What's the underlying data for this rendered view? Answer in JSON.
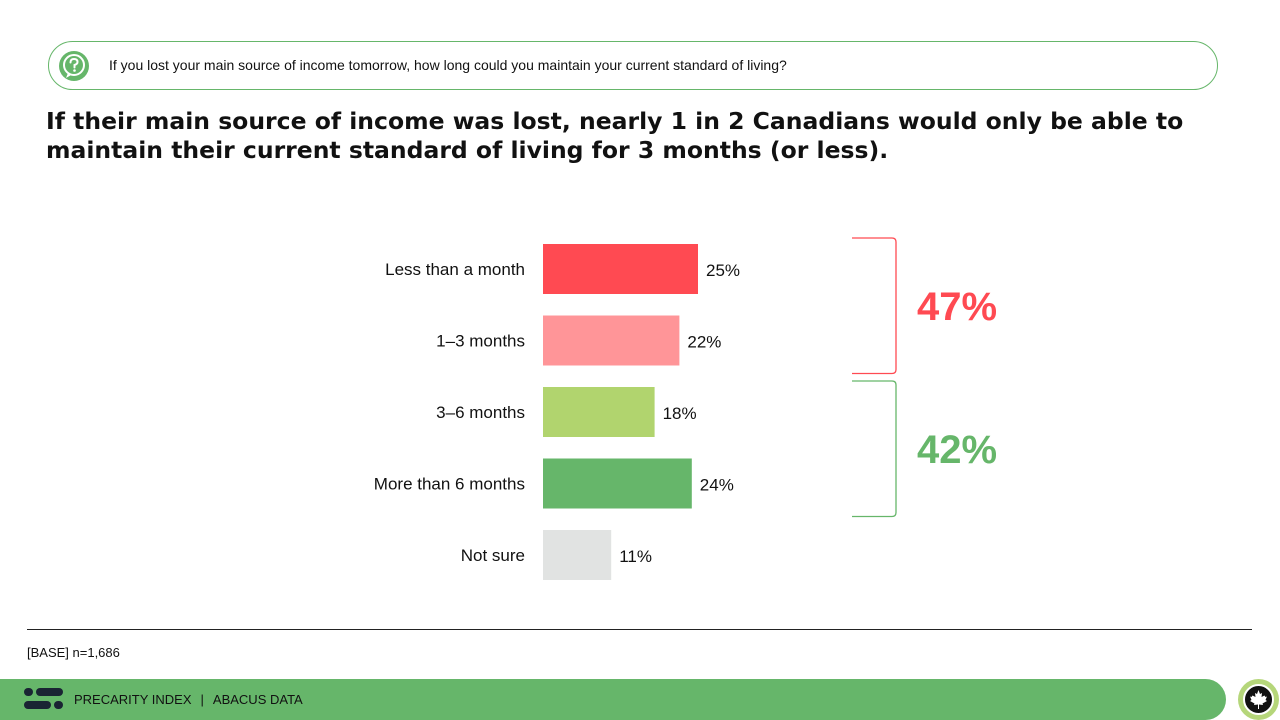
{
  "question": {
    "icon": "question-icon",
    "text": "If you lost your main source of income tomorrow, how long could you maintain your current standard of living?"
  },
  "headline": "If their main source of income was lost, nearly 1 in 2 Canadians would only be able to maintain their current standard of living for 3 months (or less).",
  "chart_data": {
    "type": "bar",
    "orientation": "horizontal",
    "categories": [
      "Less than a month",
      "1–3 months",
      "3–6 months",
      "More than 6 months",
      "Not sure"
    ],
    "values": [
      25,
      22,
      18,
      24,
      11
    ],
    "value_labels": [
      "25%",
      "22%",
      "18%",
      "24%",
      "11%"
    ],
    "bar_colors": [
      "#ff4a52",
      "#ff9598",
      "#b1d46e",
      "#66b66a",
      "#e1e3e2"
    ],
    "grid": false,
    "groups": [
      {
        "label": "47%",
        "from": 0,
        "to": 1,
        "color": "#ff4a52"
      },
      {
        "label": "42%",
        "from": 2,
        "to": 3,
        "color": "#66b66a"
      }
    ]
  },
  "base_note": "[BASE] n=1,686",
  "footer": {
    "logo_icon": "abacus-logo-icon",
    "left": "PRECARITY INDEX",
    "separator": "|",
    "right": "ABACUS DATA",
    "badge_icon": "maple-leaf-icon"
  }
}
